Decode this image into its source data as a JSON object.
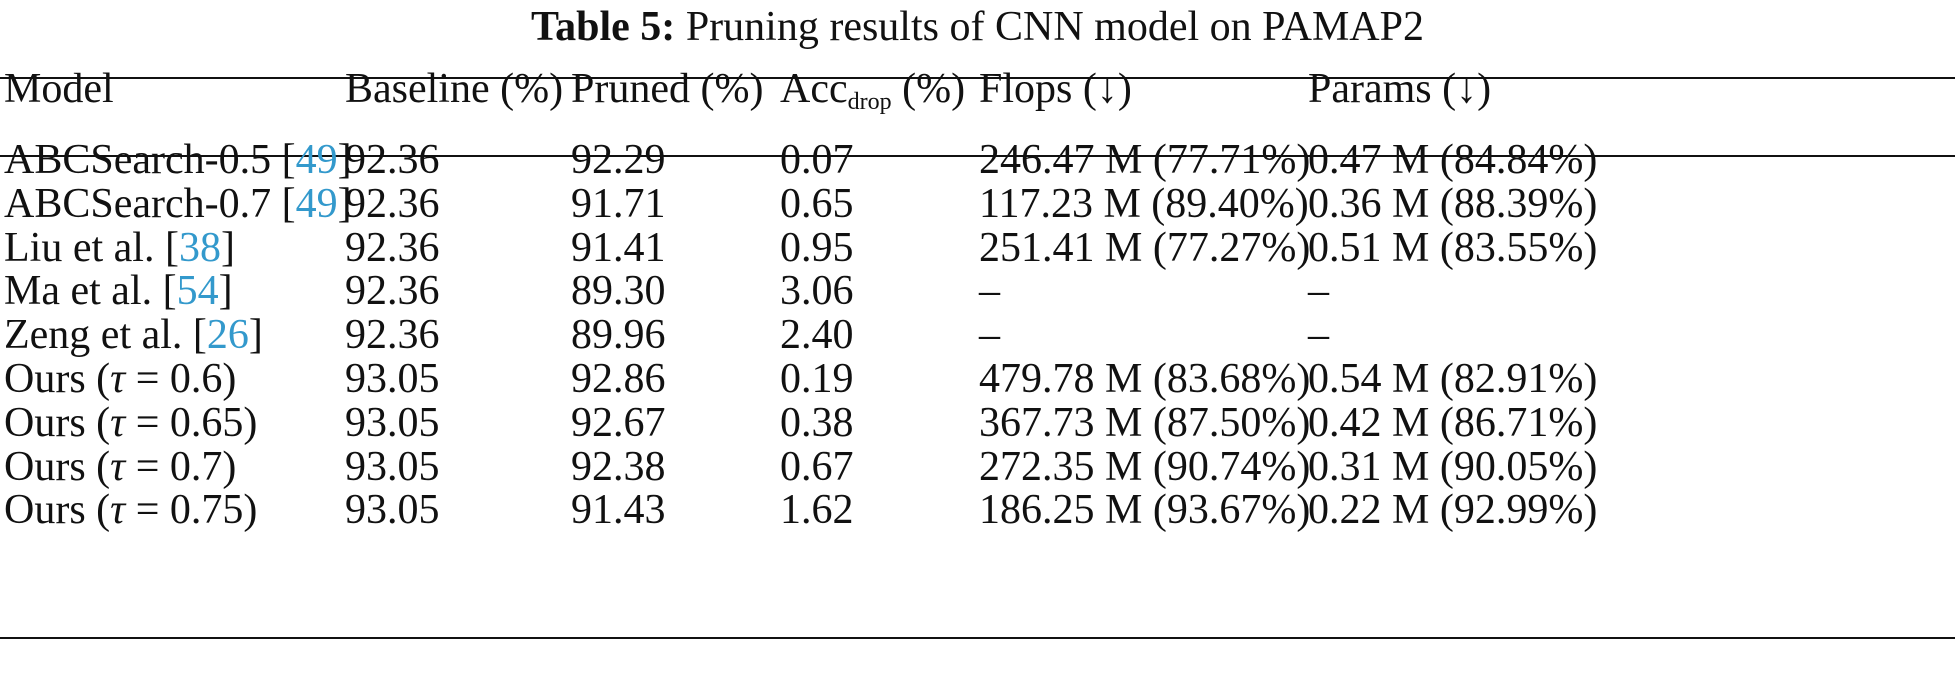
{
  "caption": {
    "label": "Table 5:",
    "text": "Pruning results of CNN model on PAMAP2"
  },
  "table": {
    "headers": {
      "model": "Model",
      "baseline": "Baseline (%)",
      "pruned": "Pruned (%)",
      "acc_main": "Acc",
      "acc_sub": "drop",
      "acc_unit": " (%)",
      "flops": "Flops (↓)",
      "params": "Params (↓)"
    },
    "rows": [
      {
        "model": "ABCSearch-0.5 [",
        "cite": "49",
        "model_suffix": "]",
        "baseline": "92.36",
        "pruned": "92.29",
        "acc_drop": "0.07",
        "flops": "246.47 M (77.71%)",
        "params": "0.47 M (84.84%)"
      },
      {
        "model": "ABCSearch-0.7 [",
        "cite": "49",
        "model_suffix": "]",
        "baseline": "92.36",
        "pruned": "91.71",
        "acc_drop": "0.65",
        "flops": "117.23 M (89.40%)",
        "params": "0.36 M (88.39%)"
      },
      {
        "model": "Liu et al. [",
        "cite": "38",
        "model_suffix": "]",
        "baseline": "92.36",
        "pruned": "91.41",
        "acc_drop": "0.95",
        "flops": "251.41 M (77.27%)",
        "params": "0.51 M (83.55%)"
      },
      {
        "model": "Ma et al. [",
        "cite": "54",
        "model_suffix": "]",
        "baseline": "92.36",
        "pruned": "89.30",
        "acc_drop": "3.06",
        "flops": "–",
        "params": "–"
      },
      {
        "model": "Zeng et al. [",
        "cite": "26",
        "model_suffix": "]",
        "baseline": "92.36",
        "pruned": "89.96",
        "acc_drop": "2.40",
        "flops": "–",
        "params": "–"
      },
      {
        "model": "Ours (",
        "tau": "τ",
        "model_suffix": " = 0.6)",
        "baseline": "93.05",
        "pruned": "92.86",
        "acc_drop": "0.19",
        "flops": "479.78 M (83.68%)",
        "params": "0.54 M (82.91%)"
      },
      {
        "model": "Ours (",
        "tau": "τ",
        "model_suffix": " = 0.65)",
        "baseline": "93.05",
        "pruned": "92.67",
        "acc_drop": "0.38",
        "flops": "367.73 M (87.50%)",
        "params": "0.42 M (86.71%)"
      },
      {
        "model": "Ours (",
        "tau": "τ",
        "model_suffix": " = 0.7)",
        "baseline": "93.05",
        "pruned": "92.38",
        "acc_drop": "0.67",
        "flops": "272.35 M (90.74%)",
        "params": "0.31 M (90.05%)"
      },
      {
        "model": "Ours (",
        "tau": "τ",
        "model_suffix": " = 0.75)",
        "baseline": "93.05",
        "pruned": "91.43",
        "acc_drop": "1.62",
        "flops": "186.25 M (93.67%)",
        "params": "0.22 M (92.99%)"
      }
    ]
  },
  "colors": {
    "text": "#111111",
    "citation": "#3399cc"
  }
}
